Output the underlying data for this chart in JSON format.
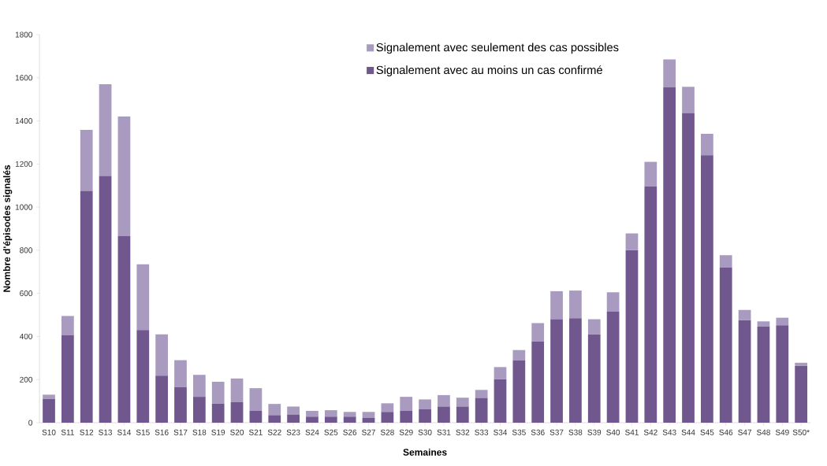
{
  "chart_data": {
    "type": "bar",
    "stacked": true,
    "xlabel": "Semaines",
    "ylabel": "Nombre d'épisodes signalés",
    "categories": [
      "S10",
      "S11",
      "S12",
      "S13",
      "S14",
      "S15",
      "S16",
      "S17",
      "S18",
      "S19",
      "S20",
      "S21",
      "S22",
      "S23",
      "S24",
      "S25",
      "S26",
      "S27",
      "S28",
      "S29",
      "S30",
      "S31",
      "S32",
      "S33",
      "S34",
      "S35",
      "S36",
      "S37",
      "S38",
      "S39",
      "S40",
      "S41",
      "S42",
      "S43",
      "S44",
      "S45",
      "S46",
      "S47",
      "S48",
      "S49",
      "S50*"
    ],
    "series": [
      {
        "name": "Signalement avec au moins un cas confirmé",
        "color": "#70578d",
        "values": [
          110,
          405,
          1075,
          1145,
          865,
          430,
          218,
          165,
          120,
          88,
          95,
          55,
          35,
          38,
          28,
          28,
          28,
          22,
          50,
          55,
          63,
          75,
          75,
          115,
          202,
          288,
          377,
          480,
          485,
          410,
          517,
          800,
          1095,
          1555,
          1437,
          1240,
          720,
          475,
          445,
          452,
          263
        ]
      },
      {
        "name": "Signalement avec seulement des cas possibles",
        "color": "#a99bbf",
        "values": [
          20,
          90,
          283,
          425,
          555,
          305,
          192,
          125,
          102,
          102,
          110,
          105,
          52,
          37,
          27,
          30,
          22,
          28,
          40,
          65,
          45,
          53,
          41,
          37,
          56,
          49,
          85,
          130,
          128,
          70,
          88,
          78,
          115,
          130,
          121,
          100,
          57,
          48,
          25,
          35,
          15
        ]
      }
    ],
    "ylim": [
      0,
      1800
    ],
    "yticks": [
      0,
      200,
      400,
      600,
      800,
      1000,
      1200,
      1400,
      1600,
      1800
    ],
    "grid": false,
    "legend": "top"
  }
}
